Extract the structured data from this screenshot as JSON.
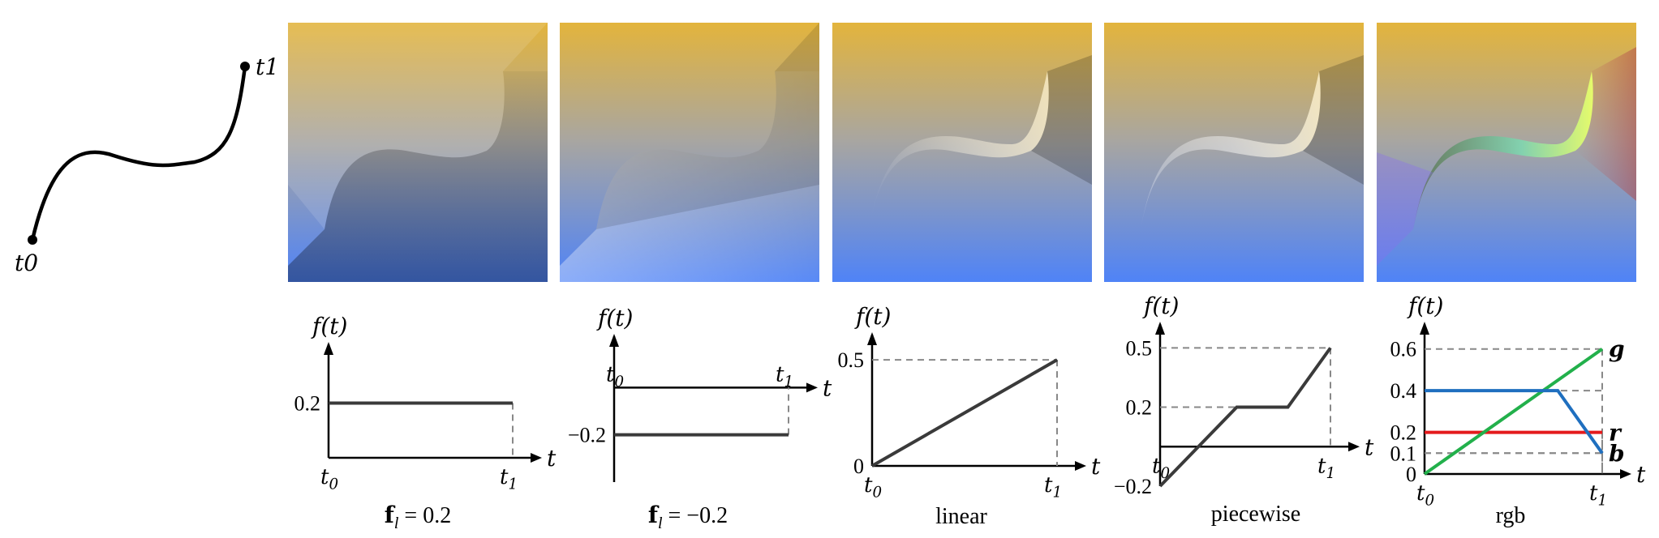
{
  "curve": {
    "start_label": "t0",
    "end_label": "t1"
  },
  "colors": {
    "top_color": "#e3b43c",
    "bottom_color": "#4f83f7",
    "axis": "#000000",
    "guide": "#888888",
    "plot_line": "#3a3a3a",
    "r": "#e41a1c",
    "g": "#22b04b",
    "b": "#1f6fbf"
  },
  "panels": [
    {
      "id": "const-pos",
      "style": "darken-below"
    },
    {
      "id": "const-neg",
      "style": "lighten-below"
    },
    {
      "id": "linear",
      "style": "linear-highlight"
    },
    {
      "id": "piecewise",
      "style": "piecewise-highlight"
    },
    {
      "id": "rgb",
      "style": "rgb-tint"
    }
  ],
  "graphs": [
    {
      "id": "const-pos",
      "ylabel": "f(t)",
      "xlabel": "t",
      "t0": "t0",
      "t1": "t1",
      "caption": "f_l = 0.2",
      "ylim": [
        0,
        0.4
      ],
      "yticks": [
        "0.2"
      ],
      "series": [
        {
          "x": [
            0,
            1
          ],
          "y": [
            0.2,
            0.2
          ]
        }
      ]
    },
    {
      "id": "const-neg",
      "ylabel": "f(t)",
      "xlabel": "t",
      "t0": "t0",
      "t1": "t1",
      "caption": "f_l = −0.2",
      "ylim": [
        -0.4,
        0.2
      ],
      "yticks": [
        "−0.2"
      ],
      "series": [
        {
          "x": [
            0,
            1
          ],
          "y": [
            -0.2,
            -0.2
          ]
        }
      ]
    },
    {
      "id": "linear",
      "ylabel": "f(t)",
      "xlabel": "t",
      "t0": "t0",
      "t1": "t1",
      "caption": "linear",
      "ylim": [
        0,
        0.6
      ],
      "yticks": [
        "0.5",
        "0"
      ],
      "series": [
        {
          "x": [
            0,
            1
          ],
          "y": [
            0,
            0.5
          ]
        }
      ]
    },
    {
      "id": "piecewise",
      "ylabel": "f(t)",
      "xlabel": "t",
      "t0": "t0",
      "t1": "t1",
      "caption": "piecewise",
      "ylim": [
        -0.2,
        0.6
      ],
      "yticks": [
        "0.5",
        "0.2",
        "−0.2"
      ],
      "series": [
        {
          "x": [
            0,
            0.45,
            0.75,
            1
          ],
          "y": [
            -0.2,
            0.2,
            0.2,
            0.5
          ]
        }
      ]
    },
    {
      "id": "rgb",
      "ylabel": "f(t)",
      "xlabel": "t",
      "t0": "t0",
      "t1": "t1",
      "caption": "rgb",
      "ylim": [
        0,
        0.7
      ],
      "yticks": [
        "0.6",
        "0.4",
        "0.2",
        "0.1",
        "0"
      ],
      "series": [
        {
          "name": "r",
          "x": [
            0,
            1
          ],
          "y": [
            0.2,
            0.2
          ]
        },
        {
          "name": "g",
          "x": [
            0,
            1
          ],
          "y": [
            0,
            0.6
          ]
        },
        {
          "name": "b",
          "x": [
            0,
            0.75,
            1
          ],
          "y": [
            0.4,
            0.4,
            0.1
          ]
        }
      ]
    }
  ],
  "chart_data": [
    {
      "type": "line",
      "title": "",
      "caption": "f_l = 0.2",
      "xlabel": "t",
      "ylabel": "f(t)",
      "series": [
        {
          "x": [
            "t0",
            "t1"
          ],
          "values": [
            0.2,
            0.2
          ]
        }
      ]
    },
    {
      "type": "line",
      "title": "",
      "caption": "f_l = −0.2",
      "xlabel": "t",
      "ylabel": "f(t)",
      "series": [
        {
          "x": [
            "t0",
            "t1"
          ],
          "values": [
            -0.2,
            -0.2
          ]
        }
      ]
    },
    {
      "type": "line",
      "title": "",
      "caption": "linear",
      "xlabel": "t",
      "ylabel": "f(t)",
      "series": [
        {
          "x": [
            "t0",
            "t1"
          ],
          "values": [
            0,
            0.5
          ]
        }
      ]
    },
    {
      "type": "line",
      "title": "",
      "caption": "piecewise",
      "xlabel": "t",
      "ylabel": "f(t)",
      "series": [
        {
          "x": [
            0,
            0.45,
            0.75,
            1
          ],
          "values": [
            -0.2,
            0.2,
            0.2,
            0.5
          ]
        }
      ]
    },
    {
      "type": "line",
      "title": "",
      "caption": "rgb",
      "xlabel": "t",
      "ylabel": "f(t)",
      "series": [
        {
          "name": "r",
          "x": [
            "t0",
            "t1"
          ],
          "values": [
            0.2,
            0.2
          ]
        },
        {
          "name": "g",
          "x": [
            "t0",
            "t1"
          ],
          "values": [
            0,
            0.6
          ]
        },
        {
          "name": "b",
          "x": [
            0,
            0.75,
            1
          ],
          "values": [
            0.4,
            0.4,
            0.1
          ]
        }
      ]
    }
  ]
}
